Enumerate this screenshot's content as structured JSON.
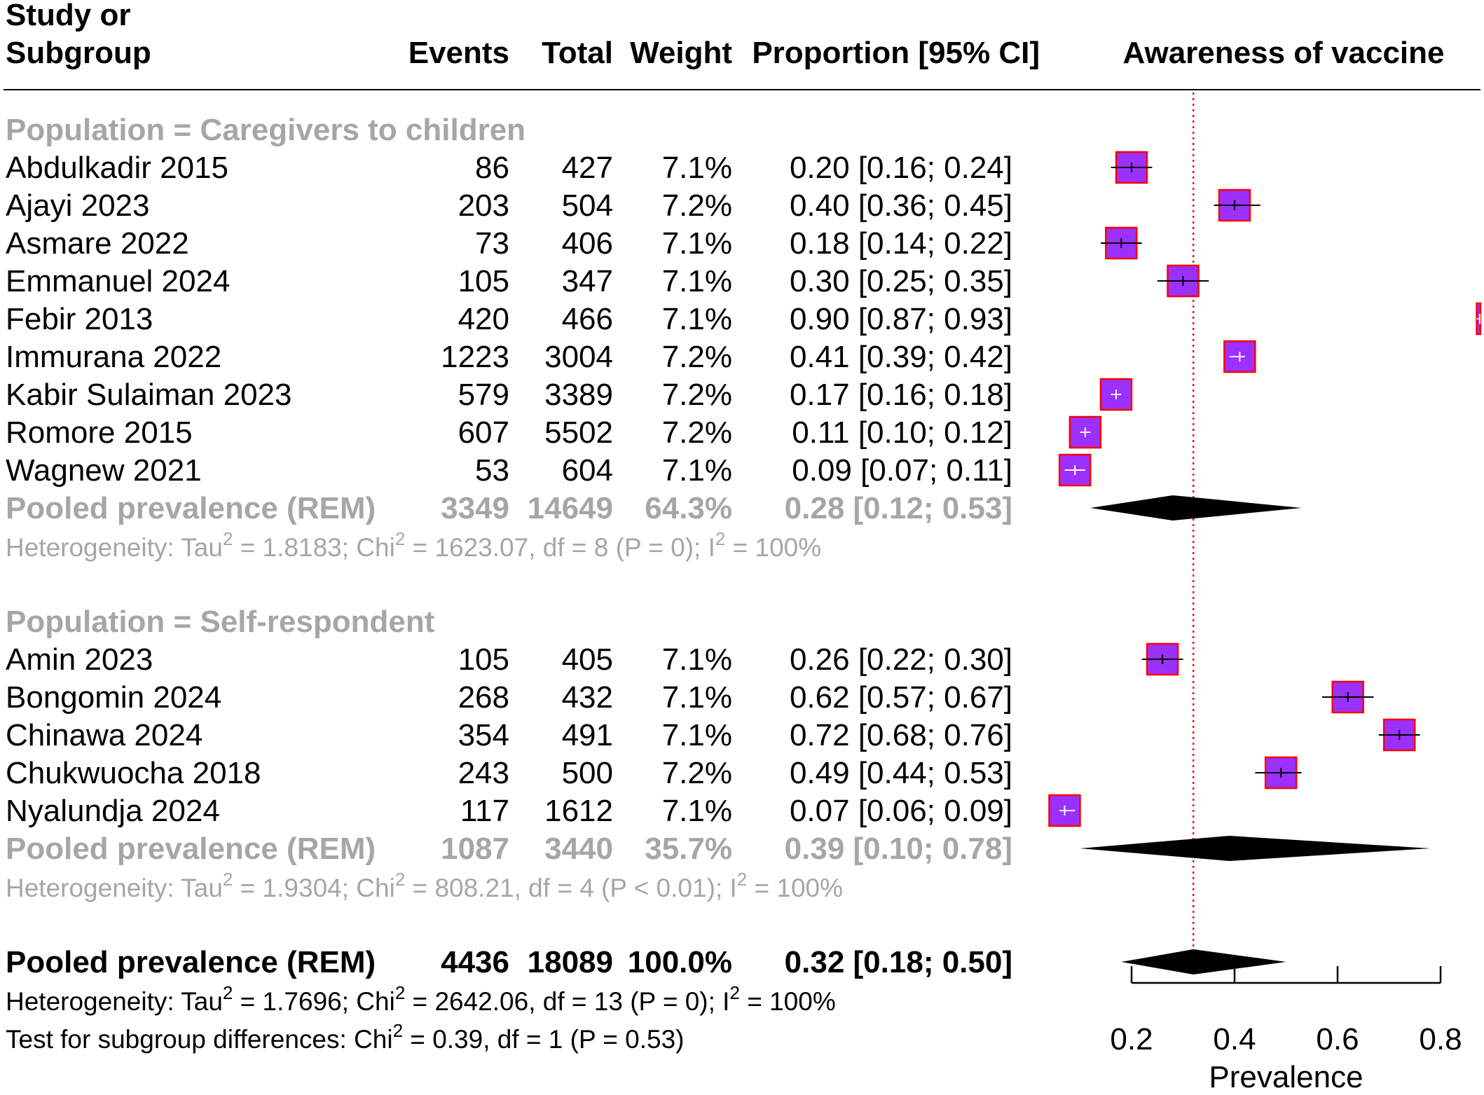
{
  "chart_data": {
    "type": "forest",
    "headers": {
      "study_line1": "Study or",
      "study_line2": "Subgroup",
      "events": "Events",
      "total": "Total",
      "weight": "Weight",
      "proportion": "Proportion [95% CI]",
      "plot": "Awareness of vaccine"
    },
    "groups": [
      {
        "label": "Population = Caregivers to children",
        "studies": [
          {
            "study": "Abdulkadir 2015",
            "events": "86",
            "total": "427",
            "weight": "7.1%",
            "ci_text": "0.20 [0.16; 0.24]",
            "est": 0.2,
            "lo": 0.16,
            "hi": 0.24
          },
          {
            "study": "Ajayi 2023",
            "events": "203",
            "total": "504",
            "weight": "7.2%",
            "ci_text": "0.40 [0.36; 0.45]",
            "est": 0.4,
            "lo": 0.36,
            "hi": 0.45
          },
          {
            "study": "Asmare 2022",
            "events": "73",
            "total": "406",
            "weight": "7.1%",
            "ci_text": "0.18 [0.14; 0.22]",
            "est": 0.18,
            "lo": 0.14,
            "hi": 0.22
          },
          {
            "study": "Emmanuel 2024",
            "events": "105",
            "total": "347",
            "weight": "7.1%",
            "ci_text": "0.30 [0.25; 0.35]",
            "est": 0.3,
            "lo": 0.25,
            "hi": 0.35
          },
          {
            "study": "Febir 2013",
            "events": "420",
            "total": "466",
            "weight": "7.1%",
            "ci_text": "0.90 [0.87; 0.93]",
            "est": 0.9,
            "lo": 0.87,
            "hi": 0.93
          },
          {
            "study": "Immurana 2022",
            "events": "1223",
            "total": "3004",
            "weight": "7.2%",
            "ci_text": "0.41 [0.39; 0.42]",
            "est": 0.41,
            "lo": 0.39,
            "hi": 0.42
          },
          {
            "study": "Kabir Sulaiman 2023",
            "events": "579",
            "total": "3389",
            "weight": "7.2%",
            "ci_text": "0.17 [0.16; 0.18]",
            "est": 0.17,
            "lo": 0.16,
            "hi": 0.18
          },
          {
            "study": "Romore 2015",
            "events": "607",
            "total": "5502",
            "weight": "7.2%",
            "ci_text": "0.11 [0.10; 0.12]",
            "est": 0.11,
            "lo": 0.1,
            "hi": 0.12
          },
          {
            "study": "Wagnew 2021",
            "events": "53",
            "total": "604",
            "weight": "7.1%",
            "ci_text": "0.09 [0.07; 0.11]",
            "est": 0.09,
            "lo": 0.07,
            "hi": 0.11
          }
        ],
        "pooled": {
          "label": "Pooled prevalence  (REM)",
          "events": "3349",
          "total": "14649",
          "weight": "64.3%",
          "ci_text": "0.28 [0.12; 0.53]",
          "est": 0.28,
          "lo": 0.12,
          "hi": 0.53
        },
        "heterogeneity": [
          "Heterogeneity: Tau",
          "2",
          " = 1.8183; Chi",
          "2",
          " = 1623.07, df = 8 (P = 0); I",
          "2",
          " = 100%"
        ]
      },
      {
        "label": "Population = Self-respondent",
        "studies": [
          {
            "study": "Amin 2023",
            "events": "105",
            "total": "405",
            "weight": "7.1%",
            "ci_text": "0.26 [0.22; 0.30]",
            "est": 0.26,
            "lo": 0.22,
            "hi": 0.3
          },
          {
            "study": "Bongomin 2024",
            "events": "268",
            "total": "432",
            "weight": "7.1%",
            "ci_text": "0.62 [0.57; 0.67]",
            "est": 0.62,
            "lo": 0.57,
            "hi": 0.67
          },
          {
            "study": "Chinawa 2024",
            "events": "354",
            "total": "491",
            "weight": "7.1%",
            "ci_text": "0.72 [0.68; 0.76]",
            "est": 0.72,
            "lo": 0.68,
            "hi": 0.76
          },
          {
            "study": "Chukwuocha 2018",
            "events": "243",
            "total": "500",
            "weight": "7.2%",
            "ci_text": "0.49 [0.44; 0.53]",
            "est": 0.49,
            "lo": 0.44,
            "hi": 0.53
          },
          {
            "study": "Nyalundja 2024",
            "events": "117",
            "total": "1612",
            "weight": "7.1%",
            "ci_text": "0.07 [0.06; 0.09]",
            "est": 0.07,
            "lo": 0.06,
            "hi": 0.09
          }
        ],
        "pooled": {
          "label": "Pooled prevalence  (REM)",
          "events": "1087",
          "total": "3440",
          "weight": "35.7%",
          "ci_text": "0.39 [0.10; 0.78]",
          "est": 0.39,
          "lo": 0.1,
          "hi": 0.78
        },
        "heterogeneity": [
          "Heterogeneity: Tau",
          "2",
          " = 1.9304; Chi",
          "2",
          " = 808.21, df = 4 (P < 0.01); I",
          "2",
          " = 100%"
        ]
      }
    ],
    "overall": {
      "label": "Pooled prevalence  (REM)",
      "events": "4436",
      "total": "18089",
      "weight": "100.0%",
      "ci_text": "0.32 [0.18; 0.50]",
      "est": 0.32,
      "lo": 0.18,
      "hi": 0.5
    },
    "overall_heterogeneity": [
      "Heterogeneity: Tau",
      "2",
      " = 1.7696; Chi",
      "2",
      " = 2642.06, df = 13 (P = 0); I",
      "2",
      " = 100%"
    ],
    "subgroup_test": [
      "Test for subgroup differences: Chi",
      "2",
      " = 0.39, df = 1 (P = 0.53)"
    ],
    "reference_line": 0.32,
    "x_ticks": [
      0.2,
      0.4,
      0.6,
      0.8
    ],
    "x_tick_labels": [
      "0.2",
      "0.4",
      "0.6",
      "0.8"
    ],
    "xlabel": "Prevalence",
    "colors": {
      "square_fill": "#9b30ff",
      "square_border": "#ff0000",
      "diamond": "#000000",
      "reference_line": "#ff0000",
      "subgroup_text": "#a6a6a6"
    }
  }
}
